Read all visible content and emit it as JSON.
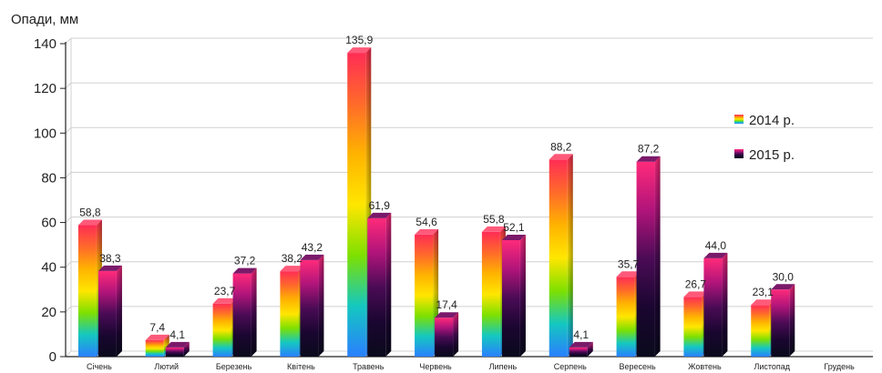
{
  "chart_data": {
    "type": "bar",
    "ylabel": "Опади, мм",
    "ylim": [
      0,
      140
    ],
    "yticks": [
      0,
      20,
      40,
      60,
      80,
      100,
      120,
      140
    ],
    "grid": true,
    "legend_position": "right",
    "categories": [
      "Січень",
      "Лютий",
      "Березень",
      "Квітень",
      "Травень",
      "Червень",
      "Липень",
      "Серпень",
      "Вересень",
      "Жовтень",
      "Листопад",
      "Грудень"
    ],
    "series": [
      {
        "name": "2014 р.",
        "values": [
          58.8,
          7.4,
          23.7,
          38.2,
          135.9,
          54.6,
          55.8,
          88.2,
          35.7,
          26.7,
          23.1,
          null
        ],
        "labels": [
          "58,8",
          "7,4",
          "23,7",
          "38,2",
          "135,9",
          "54,6",
          "55,8",
          "88,2",
          "35,7",
          "26,7",
          "23,1",
          ""
        ]
      },
      {
        "name": "2015 р.",
        "values": [
          38.3,
          4.1,
          37.2,
          43.2,
          61.9,
          17.4,
          52.1,
          4.1,
          87.2,
          44.0,
          30.0,
          null
        ],
        "labels": [
          "38,3",
          "4,1",
          "37,2",
          "43,2",
          "61,9",
          "17,4",
          "52,1",
          "4,1",
          "87,2",
          "44,0",
          "30,0",
          ""
        ]
      }
    ],
    "colors": {
      "rainbow": [
        "#ff2d55",
        "#ff6a2a",
        "#ffb300",
        "#ffe600",
        "#7ee000",
        "#14c8c0",
        "#2a7fff"
      ],
      "dark": [
        "#ff2a7a",
        "#b0147a",
        "#4a0b55",
        "#1a0630",
        "#0a0a1c"
      ],
      "grid": "#d0d0d0",
      "axis": "#222222"
    }
  }
}
